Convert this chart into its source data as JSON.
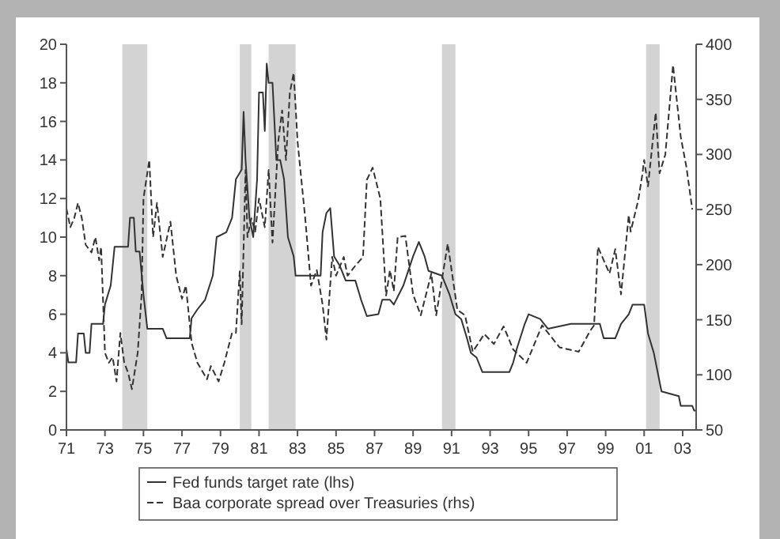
{
  "chart_data": {
    "type": "line",
    "xlabel": null,
    "legend": "bottom",
    "grid": false,
    "xlim": [
      1971,
      2003.7
    ],
    "xticks": [
      {
        "value": 1971,
        "label": "71"
      },
      {
        "value": 1973,
        "label": "73"
      },
      {
        "value": 1975,
        "label": "75"
      },
      {
        "value": 1977,
        "label": "77"
      },
      {
        "value": 1979,
        "label": "79"
      },
      {
        "value": 1981,
        "label": "81"
      },
      {
        "value": 1983,
        "label": "83"
      },
      {
        "value": 1985,
        "label": "85"
      },
      {
        "value": 1987,
        "label": "87"
      },
      {
        "value": 1989,
        "label": "89"
      },
      {
        "value": 1991,
        "label": "91"
      },
      {
        "value": 1993,
        "label": "93"
      },
      {
        "value": 1995,
        "label": "95"
      },
      {
        "value": 1997,
        "label": "97"
      },
      {
        "value": 1999,
        "label": "99"
      },
      {
        "value": 2001,
        "label": "01"
      },
      {
        "value": 2003,
        "label": "03"
      }
    ],
    "ylim": [
      0,
      20
    ],
    "yticks": [
      0,
      2,
      4,
      6,
      8,
      10,
      12,
      14,
      16,
      18,
      20
    ],
    "y2lim": [
      50,
      400
    ],
    "y2ticks": [
      50,
      100,
      150,
      200,
      250,
      300,
      350,
      400
    ],
    "bands": [
      {
        "axis": "x",
        "from": 1973.9,
        "to": 1975.2,
        "color": "#d3d3d3"
      },
      {
        "axis": "x",
        "from": 1980.0,
        "to": 1980.6,
        "color": "#d3d3d3"
      },
      {
        "axis": "x",
        "from": 1981.5,
        "to": 1982.9,
        "color": "#d3d3d3"
      },
      {
        "axis": "x",
        "from": 1990.5,
        "to": 1991.2,
        "color": "#d3d3d3"
      },
      {
        "axis": "x",
        "from": 2001.1,
        "to": 2001.8,
        "color": "#d3d3d3"
      }
    ],
    "series": [
      {
        "name": "Fed funds target rate (lhs)",
        "color": "#333333",
        "line_style": "solid",
        "x": [
          1971.0,
          1971.1,
          1971.5,
          1971.6,
          1971.9,
          1972.0,
          1972.2,
          1972.3,
          1972.9,
          1973.0,
          1973.3,
          1973.5,
          1974.2,
          1974.3,
          1974.5,
          1974.6,
          1974.8,
          1975.0,
          1975.2,
          1976.0,
          1976.2,
          1977.0,
          1977.4,
          1977.5,
          1977.8,
          1978.2,
          1978.6,
          1978.8,
          1979.3,
          1979.6,
          1979.8,
          1980.1,
          1980.2,
          1980.3,
          1980.5,
          1980.7,
          1980.9,
          1981.0,
          1981.2,
          1981.3,
          1981.4,
          1981.5,
          1981.7,
          1981.9,
          1982.1,
          1982.3,
          1982.5,
          1982.8,
          1982.9,
          1983.0,
          1984.2,
          1984.3,
          1984.5,
          1984.7,
          1984.9,
          1985.2,
          1985.5,
          1986.0,
          1986.3,
          1986.6,
          1987.2,
          1987.4,
          1987.8,
          1988.0,
          1988.5,
          1989.0,
          1989.3,
          1989.6,
          1989.8,
          1990.5,
          1990.9,
          1991.2,
          1991.5,
          1991.8,
          1992.0,
          1992.3,
          1992.6,
          1993.0,
          1994.0,
          1994.2,
          1994.4,
          1994.8,
          1995.0,
          1995.6,
          1996.0,
          1997.2,
          1998.7,
          1998.9,
          1999.5,
          1999.8,
          2000.2,
          2000.4,
          2001.0,
          2001.2,
          2001.5,
          2001.7,
          2001.9,
          2002.8,
          2002.9,
          2003.5,
          2003.6,
          2003.7
        ],
        "values": [
          4.2,
          3.5,
          3.5,
          5,
          5,
          4,
          4,
          5.5,
          5.5,
          6.5,
          7.5,
          9.5,
          9.5,
          11,
          11,
          9.25,
          9.25,
          7,
          5.25,
          5.25,
          4.75,
          4.75,
          4.75,
          5.8,
          6.25,
          6.75,
          8,
          10,
          10.25,
          11,
          13,
          13.5,
          16.5,
          14,
          11,
          10,
          13,
          17.5,
          17.5,
          15.5,
          19,
          18,
          18,
          14,
          14,
          13,
          10,
          9,
          8,
          8,
          8,
          10.25,
          11.25,
          11.5,
          9,
          8.5,
          7.75,
          7.75,
          6.75,
          5.9,
          6,
          6.75,
          6.75,
          6.5,
          7.5,
          9,
          9.75,
          9,
          8.25,
          8,
          7,
          6,
          5.75,
          4.75,
          4,
          3.75,
          3,
          3,
          3,
          3.5,
          4.25,
          5.5,
          6,
          5.75,
          5.25,
          5.5,
          5.5,
          4.75,
          4.75,
          5.5,
          6,
          6.5,
          6.5,
          5,
          4,
          3,
          2,
          1.75,
          1.25,
          1.25,
          1,
          1
        ]
      },
      {
        "name": "Baa corporate spread over Treasuries (rhs)",
        "color": "#333333",
        "line_style": "dashed",
        "axis": "y2",
        "x": [
          1971.0,
          1971.2,
          1971.4,
          1971.6,
          1971.8,
          1972.0,
          1972.3,
          1972.5,
          1972.7,
          1972.8,
          1973.0,
          1973.2,
          1973.4,
          1973.6,
          1973.8,
          1974.0,
          1974.2,
          1974.4,
          1974.7,
          1974.9,
          1975.0,
          1975.3,
          1975.5,
          1975.7,
          1976.0,
          1976.4,
          1976.7,
          1977.0,
          1977.2,
          1977.5,
          1977.8,
          1978.3,
          1978.5,
          1978.9,
          1979.2,
          1979.6,
          1979.8,
          1980.0,
          1980.1,
          1980.3,
          1980.4,
          1980.6,
          1980.8,
          1981.0,
          1981.3,
          1981.5,
          1981.7,
          1982.0,
          1982.2,
          1982.4,
          1982.6,
          1982.8,
          1983.0,
          1983.4,
          1983.7,
          1984.0,
          1984.3,
          1984.5,
          1984.8,
          1985.0,
          1985.4,
          1985.6,
          1986.0,
          1986.4,
          1986.6,
          1986.9,
          1987.3,
          1987.6,
          1987.8,
          1988.0,
          1988.2,
          1988.6,
          1989.0,
          1989.4,
          1989.95,
          1990.2,
          1990.8,
          1991.3,
          1991.7,
          1992.1,
          1992.7,
          1993.2,
          1993.7,
          1994.2,
          1994.9,
          1995.7,
          1996.6,
          1997.6,
          1998.2,
          1998.4,
          1998.6,
          1999.2,
          1999.5,
          1999.8,
          2000.2,
          2000.3,
          2000.7,
          2000.9,
          2001.0,
          2001.2,
          2001.6,
          2001.8,
          2002.1,
          2002.5,
          2002.9,
          2003.2,
          2003.5
        ],
        "values": [
          251,
          234,
          242,
          256,
          242,
          218,
          211,
          225,
          204,
          216,
          120,
          111,
          116,
          94,
          138,
          111,
          102,
          87,
          120,
          172,
          260,
          295,
          225,
          256,
          207,
          239,
          190,
          169,
          181,
          129,
          111,
          96,
          108,
          94,
          111,
          138,
          138,
          194,
          146,
          286,
          225,
          242,
          230,
          260,
          234,
          286,
          220,
          312,
          340,
          295,
          356,
          374,
          312,
          242,
          181,
          195,
          164,
          132,
          207,
          190,
          207,
          190,
          199,
          207,
          277,
          288,
          260,
          172,
          195,
          176,
          225,
          226,
          173,
          154,
          192,
          154,
          219,
          159,
          154,
          121,
          137,
          128,
          144,
          123,
          111,
          145,
          125,
          121,
          140,
          145,
          216,
          192,
          214,
          173,
          245,
          230,
          259,
          281,
          295,
          271,
          338,
          283,
          300,
          381,
          316,
          288,
          250
        ]
      }
    ]
  }
}
